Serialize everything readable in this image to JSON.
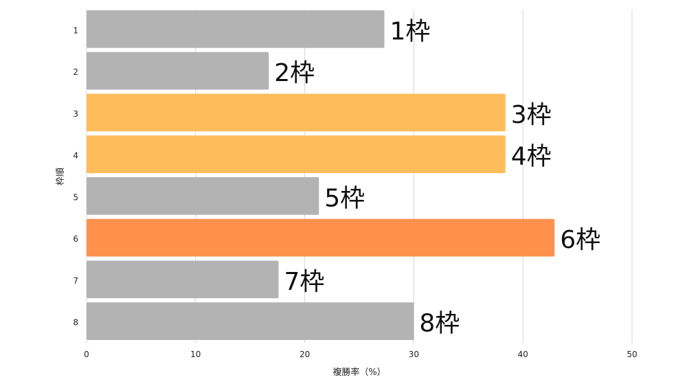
{
  "chart_data": {
    "type": "bar",
    "orientation": "horizontal",
    "categories": [
      "1",
      "2",
      "3",
      "4",
      "5",
      "6",
      "7",
      "8"
    ],
    "values": [
      27.3,
      16.7,
      38.4,
      38.4,
      21.3,
      42.9,
      17.6,
      30.0
    ],
    "data_labels": [
      "1枠",
      "2枠",
      "3枠",
      "4枠",
      "5枠",
      "6枠",
      "7枠",
      "8枠"
    ],
    "bar_colors": [
      "#b3b3b3",
      "#b3b3b3",
      "#ffbc5b",
      "#ffbc5b",
      "#b3b3b3",
      "#ff914d",
      "#b3b3b3",
      "#b3b3b3"
    ],
    "xlabel": "複勝率（%）",
    "ylabel": "枠順",
    "xlim": [
      0,
      50
    ],
    "xticks": [
      "0",
      "10",
      "20",
      "30",
      "40",
      "50"
    ],
    "grid": true
  }
}
